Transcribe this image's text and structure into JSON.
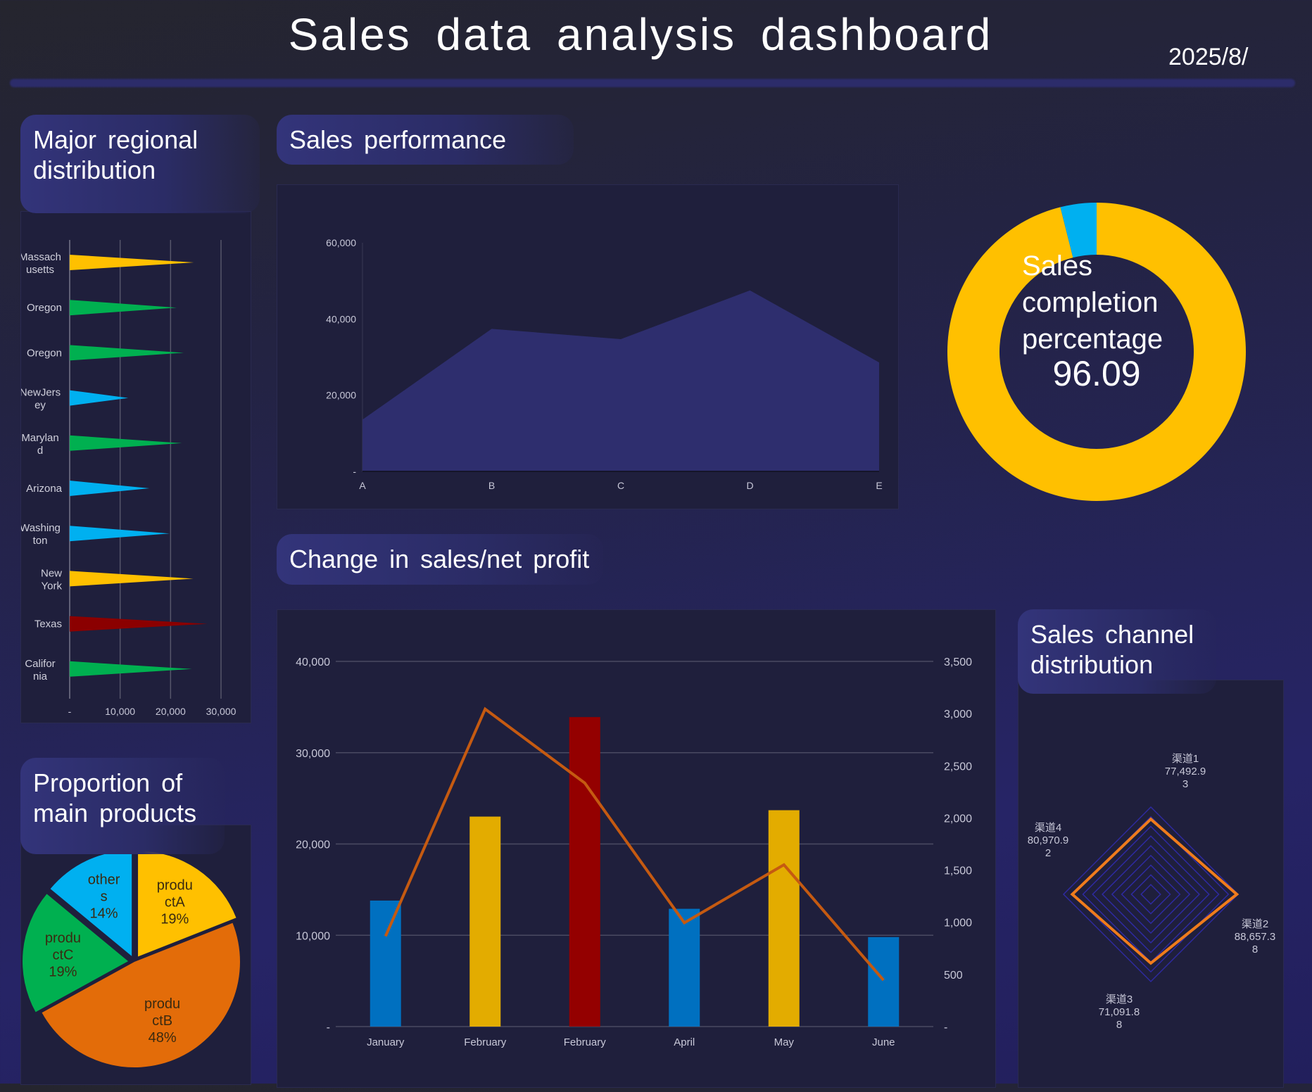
{
  "header": {
    "title": "Sales data analysis dashboard",
    "date": "2025/8/"
  },
  "regional": {
    "title": "Major regional distribution",
    "chart_data": {
      "type": "bar",
      "orientation": "horizontal",
      "categories": [
        "Massachusetts",
        "Oregon",
        "Oregon",
        "NewJersey",
        "Maryland",
        "Arizona",
        "Washington",
        "New York",
        "Texas",
        "California"
      ],
      "values": [
        24600,
        21200,
        22600,
        11600,
        22200,
        15800,
        19800,
        24500,
        27300,
        24200
      ],
      "colors": [
        "#ffc000",
        "#00b050",
        "#00b050",
        "#00b0f0",
        "#00b050",
        "#00b0f0",
        "#00b0f0",
        "#ffc000",
        "#8b0000",
        "#00b050"
      ],
      "xticks": [
        "-",
        "10,000",
        "20,000",
        "30,000"
      ],
      "xlim": [
        0,
        30000
      ]
    }
  },
  "performance": {
    "title": "Sales performance",
    "chart_data": {
      "type": "area",
      "categories": [
        "A",
        "B",
        "C",
        "D",
        "E"
      ],
      "values": [
        13600,
        37400,
        34700,
        47500,
        28600
      ],
      "yticks": [
        "-",
        "20,000",
        "40,000",
        "60,000"
      ],
      "ylim": [
        0,
        60000
      ],
      "color": "#2e2e6e"
    }
  },
  "completion": {
    "label": "Sales completion percentage",
    "value": "96.09",
    "chart_data": {
      "type": "pie",
      "values": [
        96.09,
        3.91
      ],
      "colors": [
        "#ffc000",
        "#00b0f0"
      ]
    }
  },
  "change": {
    "title": "Change in sales/net profit",
    "chart_data": {
      "type": "bar",
      "categories": [
        "January",
        "February",
        "February",
        "April",
        "May",
        "June"
      ],
      "series": [
        {
          "name": "sales",
          "type": "bar",
          "values": [
            13800,
            23000,
            33900,
            12900,
            23700,
            9800
          ],
          "colors": [
            "#0070c0",
            "#e3ac00",
            "#940000",
            "#0070c0",
            "#e3ac00",
            "#0070c0"
          ]
        },
        {
          "name": "net profit",
          "type": "line",
          "axis": "right",
          "values": [
            866,
            3043,
            2335,
            995,
            1551,
            445
          ],
          "color": "#c55a11"
        }
      ],
      "yticks_left": [
        "-",
        "10,000",
        "20,000",
        "30,000",
        "40,000"
      ],
      "ylim_left": [
        0,
        40000
      ],
      "yticks_right": [
        "-",
        "500",
        "1,000",
        "1,500",
        "2,000",
        "2,500",
        "3,000",
        "3,500"
      ],
      "ylim_right": [
        0,
        3500
      ]
    }
  },
  "channel": {
    "title": "Sales channel distribution",
    "chart_data": {
      "type": "radar",
      "categories": [
        "渠道1",
        "渠道2",
        "渠道3",
        "渠道4"
      ],
      "values_text": [
        "77,492.93",
        "88,657.38",
        "71,091.88",
        "80,970.92"
      ],
      "values": [
        77492.93,
        88657.38,
        71091.88,
        80970.92
      ],
      "rmax": 90000,
      "color": "#f07c1c"
    }
  },
  "products": {
    "title": "Proportion of main products",
    "chart_data": {
      "type": "pie",
      "labels": [
        "product A",
        "product B",
        "product C",
        "others"
      ],
      "values": [
        19,
        48,
        19,
        14
      ],
      "pct": [
        "19%",
        "48%",
        "19%",
        "14%"
      ],
      "colors": [
        "#ffc000",
        "#e36c09",
        "#00b050",
        "#00b0f0"
      ]
    }
  }
}
